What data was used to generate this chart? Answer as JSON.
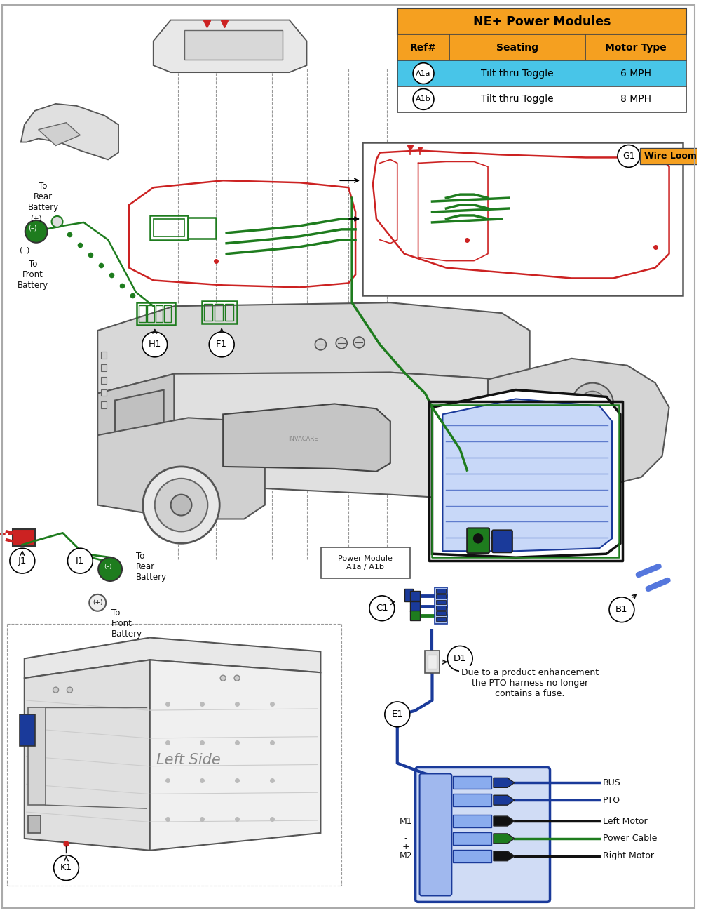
{
  "bg_color": "#ffffff",
  "table": {
    "header_text": "NE+ Power Modules",
    "col_headers": [
      "Ref#",
      "Seating",
      "Motor Type"
    ],
    "row1": {
      "ref": "A1a",
      "seating": "Tilt thru Toggle",
      "motor": "6 MPH",
      "bg": "#4DC8E8"
    },
    "row2": {
      "ref": "A1b",
      "seating": "Tilt thru Toggle",
      "motor": "8 MPH",
      "bg": "#ffffff"
    }
  },
  "wire_loom_label": "Wire Loom",
  "g1_label": "G1",
  "pto_note": "Due to a product enhancement\nthe PTO harness no longer\ncontains a fuse.",
  "power_module_label": "Power Module\nA1a / A1b",
  "left_side_label": "Left Side",
  "connector_labels": [
    "BUS",
    "PTO",
    "Left Motor",
    "Power Cable",
    "Right Motor"
  ],
  "port_side_labels": [
    [
      "M1",
      1185
    ],
    [
      "-",
      1215
    ],
    [
      "+",
      1230
    ],
    [
      "M2",
      1255
    ]
  ],
  "green": "#1E7C1E",
  "red": "#CC2222",
  "blue": "#1A3A9A",
  "blue_med": "#3355BB",
  "orange": "#F5A020",
  "light_blue": "#48C5E8",
  "black": "#111111",
  "gray": "#777777",
  "lgray": "#cccccc",
  "dashed_gray": "#999999"
}
